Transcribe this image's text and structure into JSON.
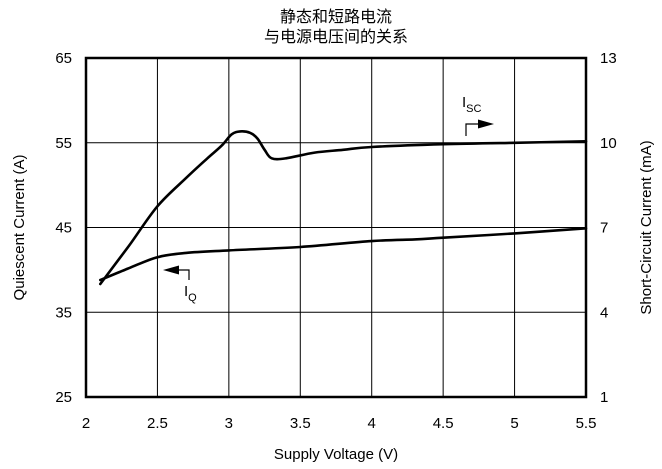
{
  "chart_data": {
    "type": "line",
    "title": "静态和短路电流",
    "subtitle": "与电源电压间的关系",
    "xlabel": "Supply Voltage (V)",
    "ylabel": "Quiescent Current (A)",
    "y2label": "Short-Circuit Current (mA)",
    "xlim": [
      2,
      5.5
    ],
    "ylim": [
      25,
      65
    ],
    "y2lim": [
      1,
      13
    ],
    "grid": true,
    "x_ticks": [
      "2",
      "2.5",
      "3",
      "3.5",
      "4",
      "4.5",
      "5",
      "5.5"
    ],
    "y_ticks": [
      "25",
      "35",
      "45",
      "55",
      "65"
    ],
    "y2_ticks": [
      "1",
      "4",
      "7",
      "10",
      "13"
    ],
    "x_tick_values": [
      2,
      2.5,
      3,
      3.5,
      4,
      4.5,
      5,
      5.5
    ],
    "y_tick_values": [
      25,
      35,
      45,
      55,
      65
    ],
    "y2_tick_values": [
      1,
      4,
      7,
      10,
      13
    ],
    "series": [
      {
        "name": "I_SC",
        "label_main": "I",
        "label_sub": "SC",
        "axis": "right",
        "x": [
          2.1,
          2.3,
          2.5,
          2.7,
          2.85,
          2.95,
          3.02,
          3.08,
          3.15,
          3.2,
          3.25,
          3.3,
          3.4,
          3.6,
          3.8,
          4.0,
          4.5,
          5.0,
          5.5
        ],
        "y": [
          5.0,
          6.35,
          7.75,
          8.75,
          9.45,
          9.9,
          10.3,
          10.4,
          10.35,
          10.15,
          9.75,
          9.45,
          9.45,
          9.65,
          9.75,
          9.85,
          9.95,
          10.0,
          10.05
        ]
      },
      {
        "name": "I_Q",
        "label_main": "I",
        "label_sub": "Q",
        "axis": "left",
        "x": [
          2.1,
          2.3,
          2.5,
          2.7,
          3.0,
          3.5,
          4.0,
          4.3,
          4.5,
          5.0,
          5.5
        ],
        "y": [
          38.8,
          40.2,
          41.5,
          42.0,
          42.3,
          42.7,
          43.4,
          43.6,
          43.8,
          44.3,
          44.9
        ]
      }
    ],
    "annotations": [
      {
        "series": "I_SC",
        "arrow": "right"
      },
      {
        "series": "I_Q",
        "arrow": "left"
      }
    ]
  }
}
